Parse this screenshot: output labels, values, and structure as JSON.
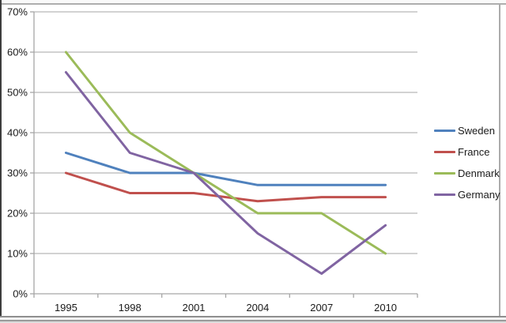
{
  "chart_data": {
    "type": "line",
    "categories": [
      "1995",
      "1998",
      "2001",
      "2004",
      "2007",
      "2010"
    ],
    "series": [
      {
        "name": "Sweden",
        "color": "#4F81BD",
        "values": [
          35,
          30,
          30,
          27,
          27,
          27
        ]
      },
      {
        "name": "France",
        "color": "#C0504D",
        "values": [
          30,
          25,
          25,
          23,
          24,
          24
        ]
      },
      {
        "name": "Denmark",
        "color": "#9BBB59",
        "values": [
          60,
          40,
          30,
          20,
          20,
          10
        ]
      },
      {
        "name": "Germany",
        "color": "#8064A2",
        "values": [
          55,
          35,
          30,
          15,
          5,
          17
        ]
      }
    ],
    "ylim": [
      0,
      70
    ],
    "ytick_step": 10,
    "ytick_labels": [
      "0%",
      "10%",
      "20%",
      "30%",
      "40%",
      "50%",
      "60%",
      "70%"
    ],
    "grid": true,
    "legend_position": "right",
    "colors": {
      "gridline": "#b8b8b8",
      "axis": "#a6a6a6",
      "text": "#1a1a1a",
      "plot_background": "#ffffff"
    }
  }
}
